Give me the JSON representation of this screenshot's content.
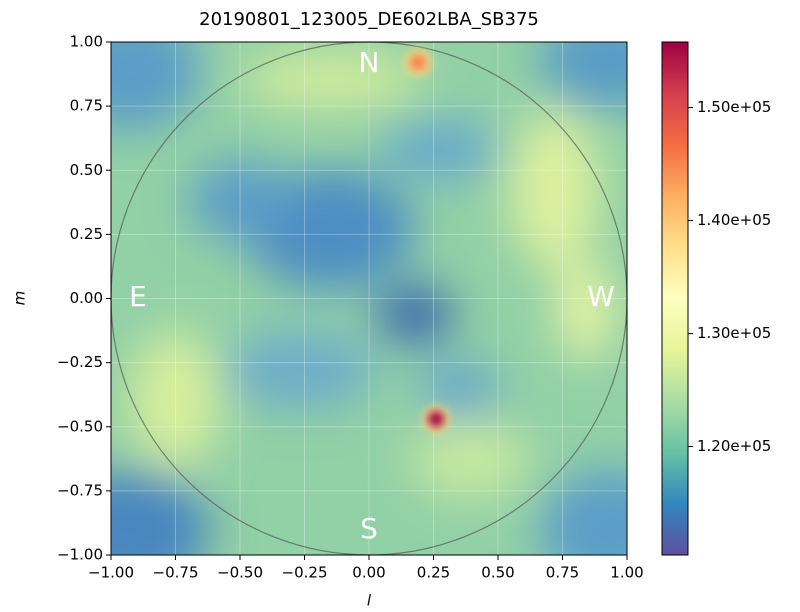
{
  "chart_data": {
    "type": "image",
    "title": "20190801_123005_DE602LBA_SB375",
    "x_label": "l",
    "y_label": "m",
    "xlim": [
      -1,
      1
    ],
    "ylim": [
      -1,
      1
    ],
    "xticks": [
      {
        "value": -1,
        "label": "−1.00"
      },
      {
        "value": -0.75,
        "label": "−0.75"
      },
      {
        "value": -0.5,
        "label": "−0.50"
      },
      {
        "value": -0.25,
        "label": "−0.25"
      },
      {
        "value": 0,
        "label": "0.00"
      },
      {
        "value": 0.25,
        "label": "0.25"
      },
      {
        "value": 0.5,
        "label": "0.50"
      },
      {
        "value": 0.75,
        "label": "0.75"
      },
      {
        "value": 1,
        "label": "1.00"
      }
    ],
    "yticks": [
      {
        "value": -1,
        "label": "−1.00"
      },
      {
        "value": -0.75,
        "label": "−0.75"
      },
      {
        "value": -0.5,
        "label": "−0.50"
      },
      {
        "value": -0.25,
        "label": "−0.25"
      },
      {
        "value": 0,
        "label": "0.00"
      },
      {
        "value": 0.25,
        "label": "0.25"
      },
      {
        "value": 0.5,
        "label": "0.50"
      },
      {
        "value": 0.75,
        "label": "0.75"
      },
      {
        "value": 1,
        "label": "1.00"
      }
    ],
    "grid": true,
    "colormap": "Spectral_r",
    "clim": [
      110400,
      155800
    ],
    "cticks": [
      {
        "value": 120000,
        "label": "1.20e+05"
      },
      {
        "value": 130000,
        "label": "1.30e+05"
      },
      {
        "value": 140000,
        "label": "1.40e+05"
      },
      {
        "value": 150000,
        "label": "1.50e+05"
      }
    ],
    "compass": [
      "N",
      "E",
      "W",
      "S"
    ],
    "sources": {
      "l": [
        0.19,
        0.26
      ],
      "m": [
        0.92,
        -0.47
      ],
      "values": [
        145000,
        155000
      ]
    }
  }
}
